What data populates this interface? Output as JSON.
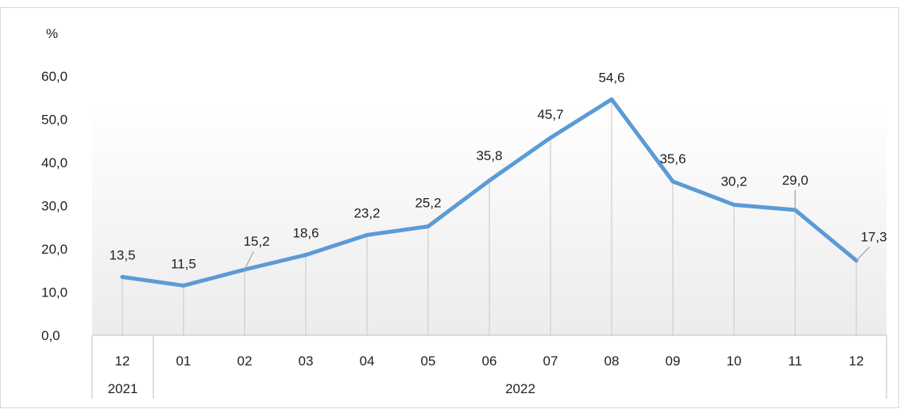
{
  "chart_data": {
    "type": "line",
    "title": "",
    "ylabel": "%",
    "xlabel": "",
    "ylim": [
      0,
      60
    ],
    "yticks": [
      "0,0",
      "10,0",
      "20,0",
      "30,0",
      "40,0",
      "50,0",
      "60,0"
    ],
    "categories": [
      "12",
      "01",
      "02",
      "03",
      "04",
      "05",
      "06",
      "07",
      "08",
      "09",
      "10",
      "11",
      "12"
    ],
    "year_groups": [
      {
        "label": "2021",
        "span": 1
      },
      {
        "label": "2022",
        "span": 12
      }
    ],
    "series": [
      {
        "values": [
          13.5,
          11.5,
          15.2,
          18.6,
          23.2,
          25.2,
          35.8,
          45.7,
          54.6,
          35.6,
          30.2,
          29.0,
          17.3
        ],
        "labels": [
          "13,5",
          "11,5",
          "15,2",
          "18,6",
          "23,2",
          "25,2",
          "35,8",
          "45,7",
          "54,6",
          "35,6",
          "30,2",
          "29,0",
          "17,3"
        ]
      }
    ],
    "grid": false,
    "drop_lines": true,
    "legend": "none",
    "line_color": "#5b9bd5"
  }
}
